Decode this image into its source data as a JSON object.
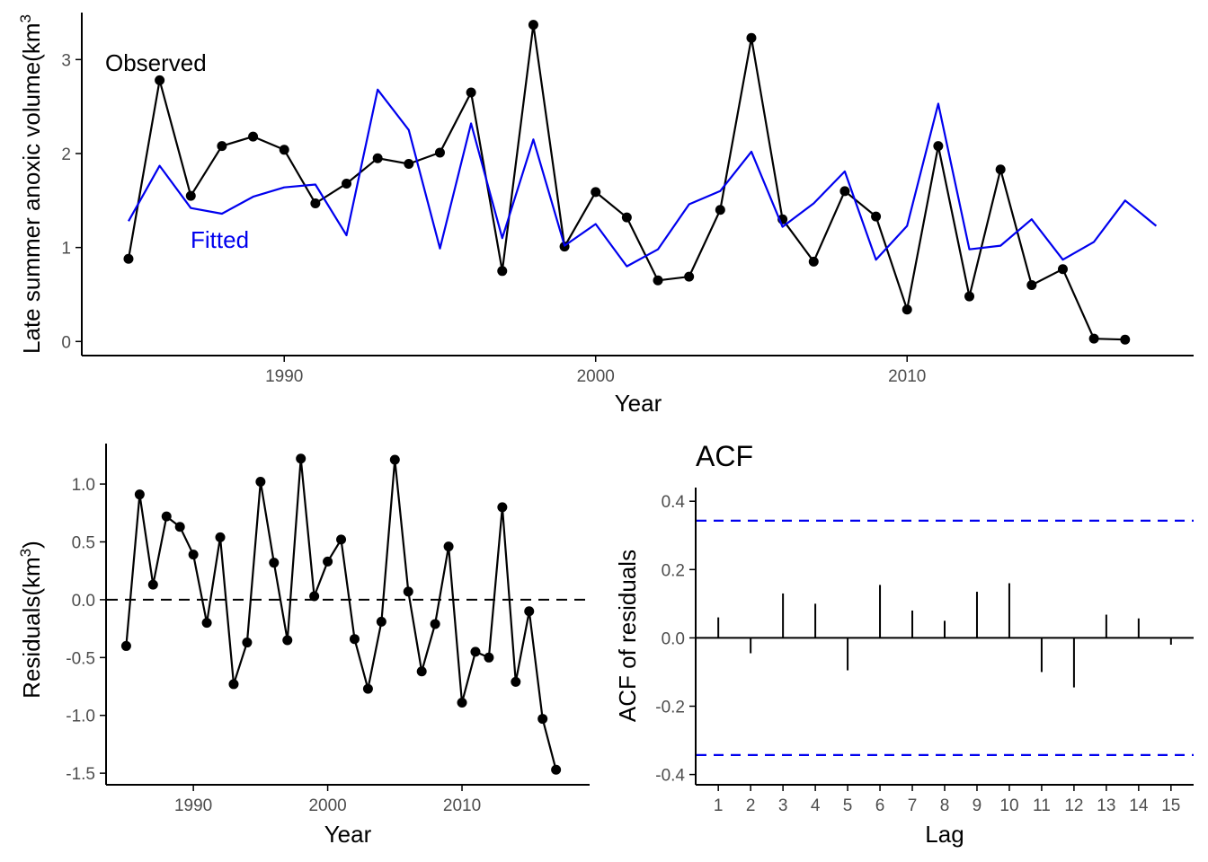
{
  "colors": {
    "observed": "#000000",
    "fitted": "#0000ee",
    "ci": "#0000ee",
    "axis": "#000000",
    "tick_text": "#4d4d4d"
  },
  "chart_data": [
    {
      "type": "line",
      "ylabel_prefix": "Late summer anoxic volume(km",
      "ylabel_sup": "3",
      "xlabel": "Year",
      "xlim": [
        1983.5,
        2019.2
      ],
      "ylim": [
        -0.15,
        3.5
      ],
      "xticks": [
        1990,
        2000,
        2010
      ],
      "yticks": [
        0,
        1,
        2,
        3
      ],
      "annotations": {
        "observed": "Observed",
        "fitted": "Fitted"
      },
      "series": [
        {
          "key": "observed",
          "x": [
            1985,
            1986,
            1987,
            1988,
            1989,
            1990,
            1991,
            1992,
            1993,
            1994,
            1995,
            1996,
            1997,
            1998,
            1999,
            2000,
            2001,
            2002,
            2003,
            2004,
            2005,
            2006,
            2007,
            2008,
            2009,
            2010,
            2011,
            2012,
            2013,
            2014,
            2015,
            2016,
            2017
          ],
          "y": [
            0.88,
            2.78,
            1.55,
            2.08,
            2.18,
            2.04,
            1.47,
            1.68,
            1.95,
            1.89,
            2.01,
            2.65,
            0.75,
            3.37,
            1.01,
            1.59,
            1.32,
            0.65,
            0.69,
            1.4,
            3.23,
            1.3,
            0.85,
            1.6,
            1.33,
            0.34,
            2.08,
            0.48,
            1.83,
            0.6,
            0.77,
            0.03,
            0.02
          ]
        },
        {
          "key": "fitted",
          "x": [
            1985,
            1986,
            1987,
            1988,
            1989,
            1990,
            1991,
            1992,
            1993,
            1994,
            1995,
            1996,
            1997,
            1998,
            1999,
            2000,
            2001,
            2002,
            2003,
            2004,
            2005,
            2006,
            2007,
            2008,
            2009,
            2010,
            2011,
            2012,
            2013,
            2014,
            2015,
            2016,
            2017,
            2018
          ],
          "y": [
            1.28,
            1.87,
            1.42,
            1.36,
            1.54,
            1.64,
            1.67,
            1.13,
            2.68,
            2.25,
            0.99,
            2.32,
            1.1,
            2.15,
            1.02,
            1.25,
            0.8,
            0.98,
            1.46,
            1.6,
            2.02,
            1.22,
            1.47,
            1.81,
            0.87,
            1.23,
            2.53,
            0.98,
            1.02,
            1.3,
            0.87,
            1.06,
            1.5,
            1.23
          ]
        }
      ]
    },
    {
      "type": "line",
      "ylabel_prefix": "Residuals(km",
      "ylabel_sup": "3",
      "ylabel_suffix": ")",
      "xlabel": "Year",
      "xlim": [
        1983.5,
        2019.5
      ],
      "ylim": [
        -1.6,
        1.35
      ],
      "xticks": [
        1990,
        2000,
        2010
      ],
      "yticks": [
        1.0,
        0.5,
        0.0,
        -0.5,
        -1.0,
        -1.5
      ],
      "ytick_labels": [
        "1.0",
        "0.5",
        "0.0",
        "-0.5",
        "-1.0",
        "-1.5"
      ],
      "zero_line": 0,
      "series": [
        {
          "key": "residuals",
          "x": [
            1985,
            1986,
            1987,
            1988,
            1989,
            1990,
            1991,
            1992,
            1993,
            1994,
            1995,
            1996,
            1997,
            1998,
            1999,
            2000,
            2001,
            2002,
            2003,
            2004,
            2005,
            2006,
            2007,
            2008,
            2009,
            2010,
            2011,
            2012,
            2013,
            2014,
            2015,
            2016,
            2017
          ],
          "y": [
            -0.4,
            0.91,
            0.13,
            0.72,
            0.63,
            0.39,
            -0.2,
            0.54,
            -0.73,
            -0.37,
            1.02,
            0.32,
            -0.35,
            1.22,
            0.03,
            0.33,
            0.52,
            -0.34,
            -0.77,
            -0.19,
            1.21,
            0.07,
            -0.62,
            -0.21,
            0.46,
            -0.89,
            -0.45,
            -0.5,
            0.8,
            -0.71,
            -0.1,
            -1.03,
            -1.47
          ]
        }
      ]
    },
    {
      "type": "bar",
      "title": "ACF",
      "ylabel": "ACF of residuals",
      "xlabel": "Lag",
      "xlim": [
        0.3,
        15.7
      ],
      "ylim": [
        -0.43,
        0.44
      ],
      "lags": [
        1,
        2,
        3,
        4,
        5,
        6,
        7,
        8,
        9,
        10,
        11,
        12,
        13,
        14,
        15
      ],
      "values": [
        0.06,
        -0.045,
        0.13,
        0.1,
        -0.095,
        0.155,
        0.08,
        0.05,
        0.135,
        0.16,
        -0.1,
        -0.145,
        0.068,
        0.057,
        -0.02
      ],
      "yticks": [
        0.4,
        0.2,
        0.0,
        -0.2,
        -0.4
      ],
      "ytick_labels": [
        "0.4",
        "0.2",
        "0.0",
        "-0.2",
        "-0.4"
      ],
      "ci": 0.343
    }
  ]
}
